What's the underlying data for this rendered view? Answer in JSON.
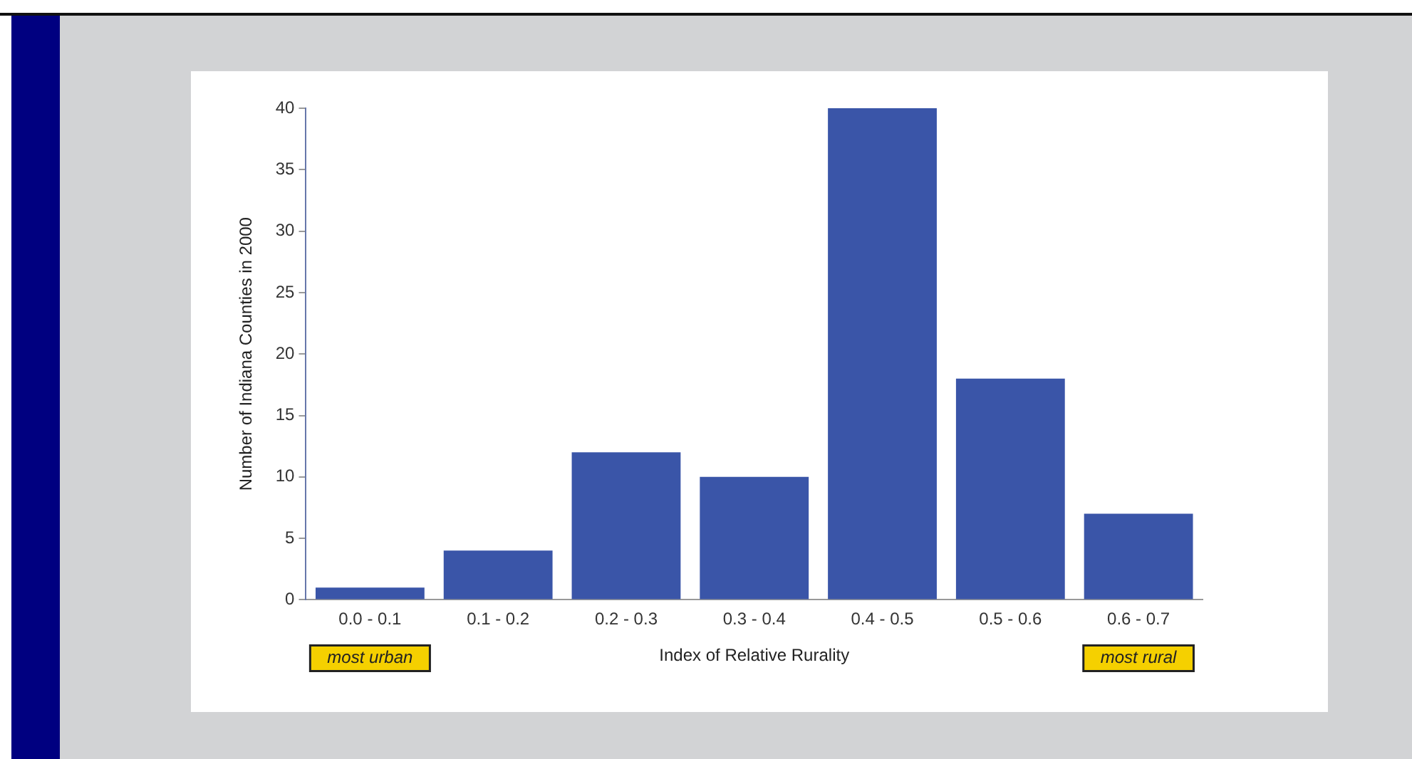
{
  "chart_data": {
    "type": "bar",
    "xlabel": "Index of Relative Rurality",
    "ylabel": "Number of Indiana Counties in 2000",
    "categories": [
      "0.0 - 0.1",
      "0.1 - 0.2",
      "0.2 - 0.3",
      "0.3 - 0.4",
      "0.4 - 0.5",
      "0.5 - 0.6",
      "0.6 - 0.7"
    ],
    "values": [
      1,
      4,
      12,
      10,
      40,
      18,
      7
    ],
    "color": "#3a55a8",
    "ylim": [
      0,
      40
    ],
    "yticks": [
      0,
      5,
      10,
      15,
      20,
      25,
      30,
      35,
      40
    ],
    "grid": false,
    "legend": false,
    "annotations": [
      "most urban",
      "most rural"
    ]
  }
}
